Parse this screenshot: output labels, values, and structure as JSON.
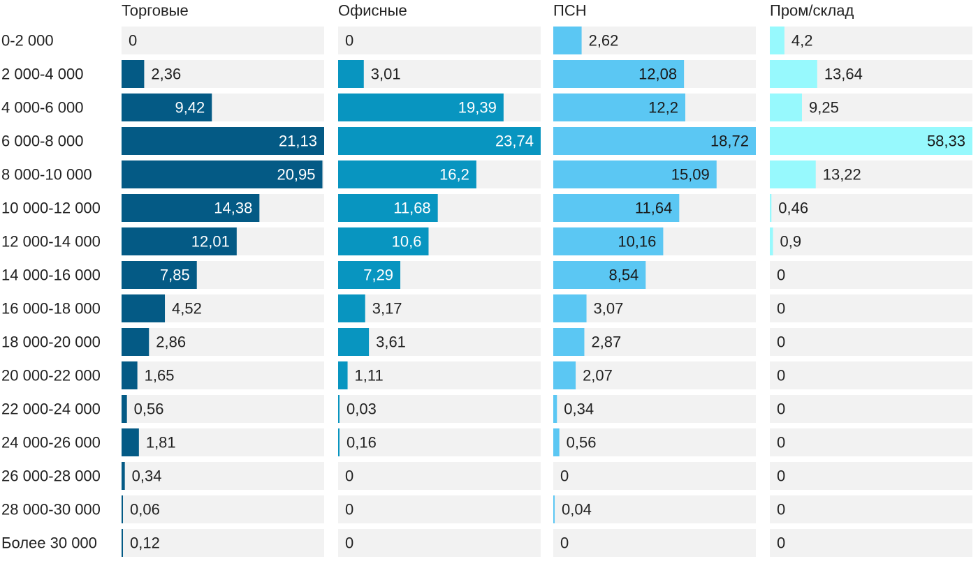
{
  "chart_data": {
    "type": "bar",
    "orientation": "horizontal",
    "layout": "small-multiples",
    "categories": [
      "0-2 000",
      "2 000-4 000",
      "4 000-6 000",
      "6 000-8 000",
      "8 000-10 000",
      "10 000-12 000",
      "12 000-14 000",
      "14 000-16 000",
      "16 000-18 000",
      "18 000-20 000",
      "20 000-22 000",
      "22 000-24 000",
      "24 000-26 000",
      "26 000-28 000",
      "28 000-30 000",
      "Более 30 000"
    ],
    "series": [
      {
        "name": "Торговые",
        "color": "#045a85",
        "values": [
          0,
          2.36,
          9.42,
          21.13,
          20.95,
          14.38,
          12.01,
          7.85,
          4.52,
          2.86,
          1.65,
          0.56,
          1.81,
          0.34,
          0.06,
          0.12
        ],
        "labels": [
          "0",
          "2,36",
          "9,42",
          "21,13",
          "20,95",
          "14,38",
          "12,01",
          "7,85",
          "4,52",
          "2,86",
          "1,65",
          "0,56",
          "1,81",
          "0,34",
          "0,06",
          "0,12"
        ]
      },
      {
        "name": "Офисные",
        "color": "#0895c0",
        "values": [
          0,
          3.01,
          19.39,
          23.74,
          16.2,
          11.68,
          10.6,
          7.29,
          3.17,
          3.61,
          1.11,
          0.03,
          0.16,
          0,
          0,
          0
        ],
        "labels": [
          "0",
          "3,01",
          "19,39",
          "23,74",
          "16,2",
          "11,68",
          "10,6",
          "7,29",
          "3,17",
          "3,61",
          "1,11",
          "0,03",
          "0,16",
          "0",
          "0",
          "0"
        ]
      },
      {
        "name": "ПСН",
        "color": "#5bc7f3",
        "values": [
          2.62,
          12.08,
          12.2,
          18.72,
          15.09,
          11.64,
          10.16,
          8.54,
          3.07,
          2.87,
          2.07,
          0.34,
          0.56,
          0,
          0.04,
          0
        ],
        "labels": [
          "2,62",
          "12,08",
          "12,2",
          "18,72",
          "15,09",
          "11,64",
          "10,16",
          "8,54",
          "3,07",
          "2,87",
          "2,07",
          "0,34",
          "0,56",
          "0",
          "0,04",
          "0"
        ]
      },
      {
        "name": "Пром/склад",
        "color": "#97f9fd",
        "values": [
          4.2,
          13.64,
          9.25,
          58.33,
          13.22,
          0.46,
          0.9,
          0,
          0,
          0,
          0,
          0,
          0,
          0,
          0,
          0
        ],
        "labels": [
          "4,2",
          "13,64",
          "9,25",
          "58,33",
          "13,22",
          "0,46",
          "0,9",
          "0",
          "0",
          "0",
          "0",
          "0",
          "0",
          "0",
          "0",
          "0"
        ]
      }
    ],
    "background_color": "#f2f2f2",
    "grid": false,
    "legend": "none"
  }
}
